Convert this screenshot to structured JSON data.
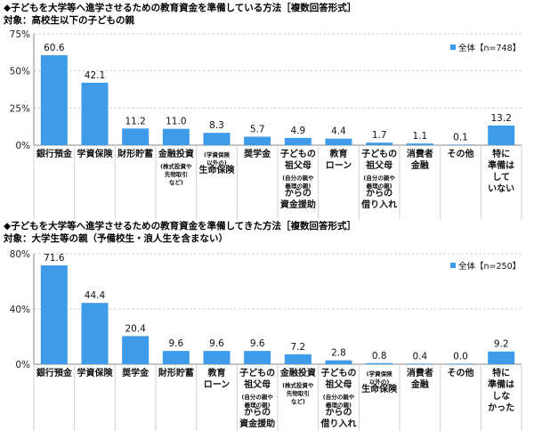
{
  "chart_data": [
    {
      "type": "bar",
      "title": "◆子どもを大学等へ進学させるための教育資金を準備している方法［複数回答形式］",
      "subtitle": "対象：高校生以下の子どもの親",
      "categories": [
        [
          "銀行預金"
        ],
        [
          "学資保険"
        ],
        [
          "財形貯蓄"
        ],
        [
          "金融投資",
          "(株式投資や",
          "先物取引",
          "など)"
        ],
        [
          "(学資保険",
          "以外の)",
          "生命保険"
        ],
        [
          "奨学金"
        ],
        [
          "子どもの",
          "祖父母",
          "(自分の親や",
          "義理の親)",
          "からの",
          "資金援助"
        ],
        [
          "教育",
          "ローン"
        ],
        [
          "子どもの",
          "祖父母",
          "(自分の親や",
          "義理の親)",
          "からの",
          "借り入れ"
        ],
        [
          "消費者",
          "金融"
        ],
        [
          "その他"
        ],
        [
          "特に",
          "準備は",
          "して",
          "いない"
        ]
      ],
      "series": [
        {
          "name": "全体【n=748】",
          "values": [
            60.6,
            42.1,
            11.2,
            11.0,
            8.3,
            5.7,
            4.9,
            4.4,
            1.7,
            1.1,
            0.1,
            13.2
          ]
        }
      ],
      "value_labels": [
        "60.6",
        "42.1",
        "11.2",
        "11.0",
        "8.3",
        "5.7",
        "4.9",
        "4.4",
        "1.7",
        "1.1",
        "0.1",
        "13.2"
      ],
      "yticks": [
        "0%",
        "25%",
        "50%",
        "75%"
      ],
      "ylim": [
        0,
        75
      ],
      "legend": "top-right",
      "color": "#3d9be9"
    },
    {
      "type": "bar",
      "title": "◆子どもを大学等へ進学させるための教育資金を準備してきた方法［複数回答形式］",
      "subtitle": "対象：大学生等の親（予備校生・浪人生を含まない）",
      "categories": [
        [
          "銀行預金"
        ],
        [
          "学資保険"
        ],
        [
          "奨学金"
        ],
        [
          "財形貯蓄"
        ],
        [
          "教育",
          "ローン"
        ],
        [
          "子どもの",
          "祖父母",
          "(自分の親や",
          "義理の親)",
          "からの",
          "資金援助"
        ],
        [
          "金融投資",
          "(株式投資や",
          "先物取引",
          "など)"
        ],
        [
          "子どもの",
          "祖父母",
          "(自分の親や",
          "義理の親)",
          "からの",
          "借り入れ"
        ],
        [
          "(学資保険",
          "以外の)",
          "生命保険"
        ],
        [
          "消費者",
          "金融"
        ],
        [
          "その他"
        ],
        [
          "特に",
          "準備は",
          "しな",
          "かった"
        ]
      ],
      "series": [
        {
          "name": "全体【n=250】",
          "values": [
            71.6,
            44.4,
            20.4,
            9.6,
            9.6,
            9.6,
            7.2,
            2.8,
            0.8,
            0.4,
            0.0,
            9.2
          ]
        }
      ],
      "value_labels": [
        "71.6",
        "44.4",
        "20.4",
        "9.6",
        "9.6",
        "9.6",
        "7.2",
        "2.8",
        "0.8",
        "0.4",
        "0.0",
        "9.2"
      ],
      "yticks": [
        "0%",
        "40%",
        "80%"
      ],
      "ylim": [
        0,
        80
      ],
      "legend": "top-right",
      "color": "#3d9be9"
    }
  ]
}
